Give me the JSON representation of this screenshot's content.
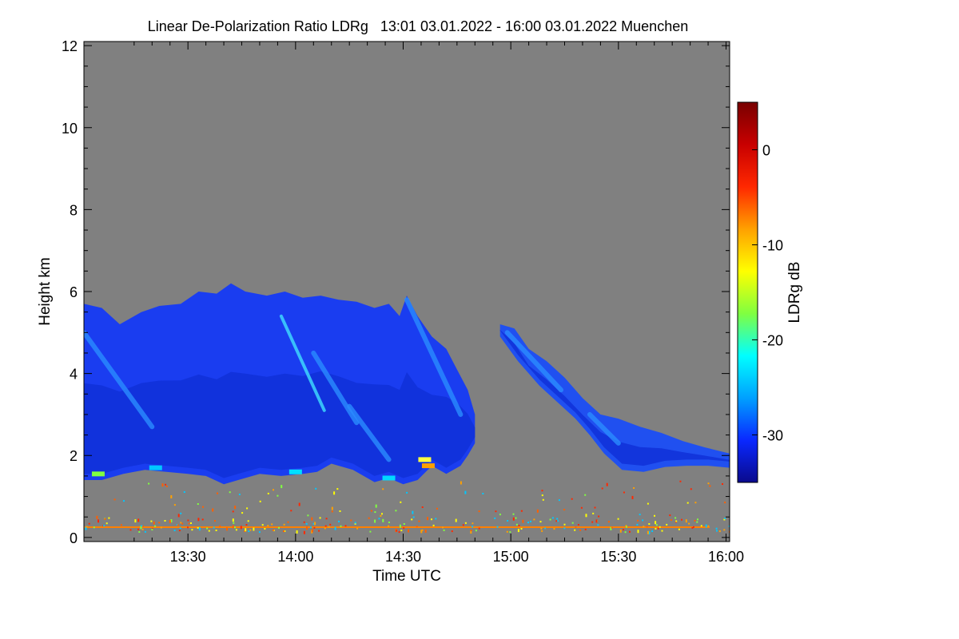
{
  "chart_data": {
    "type": "heatmap",
    "title": "Linear De-Polarization Ratio LDRg   13:01 03.01.2022 - 16:00 03.01.2022 Muenchen",
    "xlabel": "Time UTC",
    "ylabel": "Height km",
    "x_range_min": [
      781,
      961
    ],
    "xticks_min": [
      810,
      840,
      870,
      900,
      930,
      960
    ],
    "xtick_labels": [
      "13:30",
      "14:00",
      "14:30",
      "15:00",
      "15:30",
      "16:00"
    ],
    "ylim": [
      -0.1,
      12.1
    ],
    "yticks": [
      0,
      2,
      4,
      6,
      8,
      10,
      12
    ],
    "ytick_labels": [
      "0",
      "2",
      "4",
      "6",
      "8",
      "10",
      "12"
    ],
    "colorbar": {
      "label": "LDRg dB",
      "range": [
        -35,
        5
      ],
      "ticks": [
        0,
        -10,
        -20,
        -30
      ],
      "tick_labels": [
        "0",
        "-10",
        "-20",
        "-30"
      ],
      "stops": [
        "#0a0a8c",
        "#0a28ff",
        "#00a0ff",
        "#00ffff",
        "#80ff40",
        "#ffff00",
        "#ffa000",
        "#ff2800",
        "#c80000",
        "#780000"
      ]
    },
    "background_color": "#808080",
    "cloud_layers": [
      {
        "name": "main cloud",
        "start_min": 781,
        "end_min": 890,
        "top_km_profile": [
          [
            781,
            5.7
          ],
          [
            786,
            5.6
          ],
          [
            791,
            5.2
          ],
          [
            797,
            5.5
          ],
          [
            802,
            5.65
          ],
          [
            808,
            5.7
          ],
          [
            813,
            6.0
          ],
          [
            818,
            5.95
          ],
          [
            822,
            6.2
          ],
          [
            826,
            6.0
          ],
          [
            832,
            5.9
          ],
          [
            837,
            6.0
          ],
          [
            842,
            5.85
          ],
          [
            847,
            5.9
          ],
          [
            852,
            5.8
          ],
          [
            857,
            5.75
          ],
          [
            862,
            5.6
          ],
          [
            866,
            5.7
          ],
          [
            869,
            5.4
          ],
          [
            871,
            5.9
          ],
          [
            874,
            5.4
          ],
          [
            878,
            4.9
          ],
          [
            882,
            4.6
          ],
          [
            885,
            4.1
          ],
          [
            888,
            3.6
          ],
          [
            890,
            3.0
          ]
        ],
        "base_km_profile": [
          [
            781,
            1.4
          ],
          [
            786,
            1.4
          ],
          [
            792,
            1.55
          ],
          [
            798,
            1.65
          ],
          [
            804,
            1.6
          ],
          [
            810,
            1.55
          ],
          [
            815,
            1.5
          ],
          [
            820,
            1.3
          ],
          [
            824,
            1.4
          ],
          [
            830,
            1.55
          ],
          [
            836,
            1.5
          ],
          [
            842,
            1.55
          ],
          [
            846,
            1.6
          ],
          [
            850,
            1.8
          ],
          [
            856,
            1.65
          ],
          [
            862,
            1.35
          ],
          [
            866,
            1.45
          ],
          [
            870,
            1.3
          ],
          [
            874,
            1.4
          ],
          [
            878,
            1.75
          ],
          [
            882,
            1.55
          ],
          [
            886,
            1.75
          ],
          [
            888,
            2.0
          ],
          [
            890,
            2.3
          ]
        ]
      },
      {
        "name": "trailing cloud",
        "start_min": 897,
        "end_min": 961,
        "top_km_profile": [
          [
            897,
            5.2
          ],
          [
            901,
            5.1
          ],
          [
            905,
            4.6
          ],
          [
            910,
            4.3
          ],
          [
            915,
            3.9
          ],
          [
            920,
            3.4
          ],
          [
            925,
            3.0
          ],
          [
            930,
            2.9
          ],
          [
            936,
            2.7
          ],
          [
            942,
            2.55
          ],
          [
            948,
            2.35
          ],
          [
            954,
            2.2
          ],
          [
            961,
            2.05
          ]
        ],
        "base_km_profile": [
          [
            897,
            4.9
          ],
          [
            902,
            4.3
          ],
          [
            908,
            3.7
          ],
          [
            913,
            3.3
          ],
          [
            918,
            2.9
          ],
          [
            922,
            2.5
          ],
          [
            926,
            2.05
          ],
          [
            931,
            1.65
          ],
          [
            937,
            1.6
          ],
          [
            943,
            1.72
          ],
          [
            949,
            1.75
          ],
          [
            955,
            1.75
          ],
          [
            961,
            1.7
          ]
        ]
      }
    ],
    "noise_layer_km": 0.25
  }
}
